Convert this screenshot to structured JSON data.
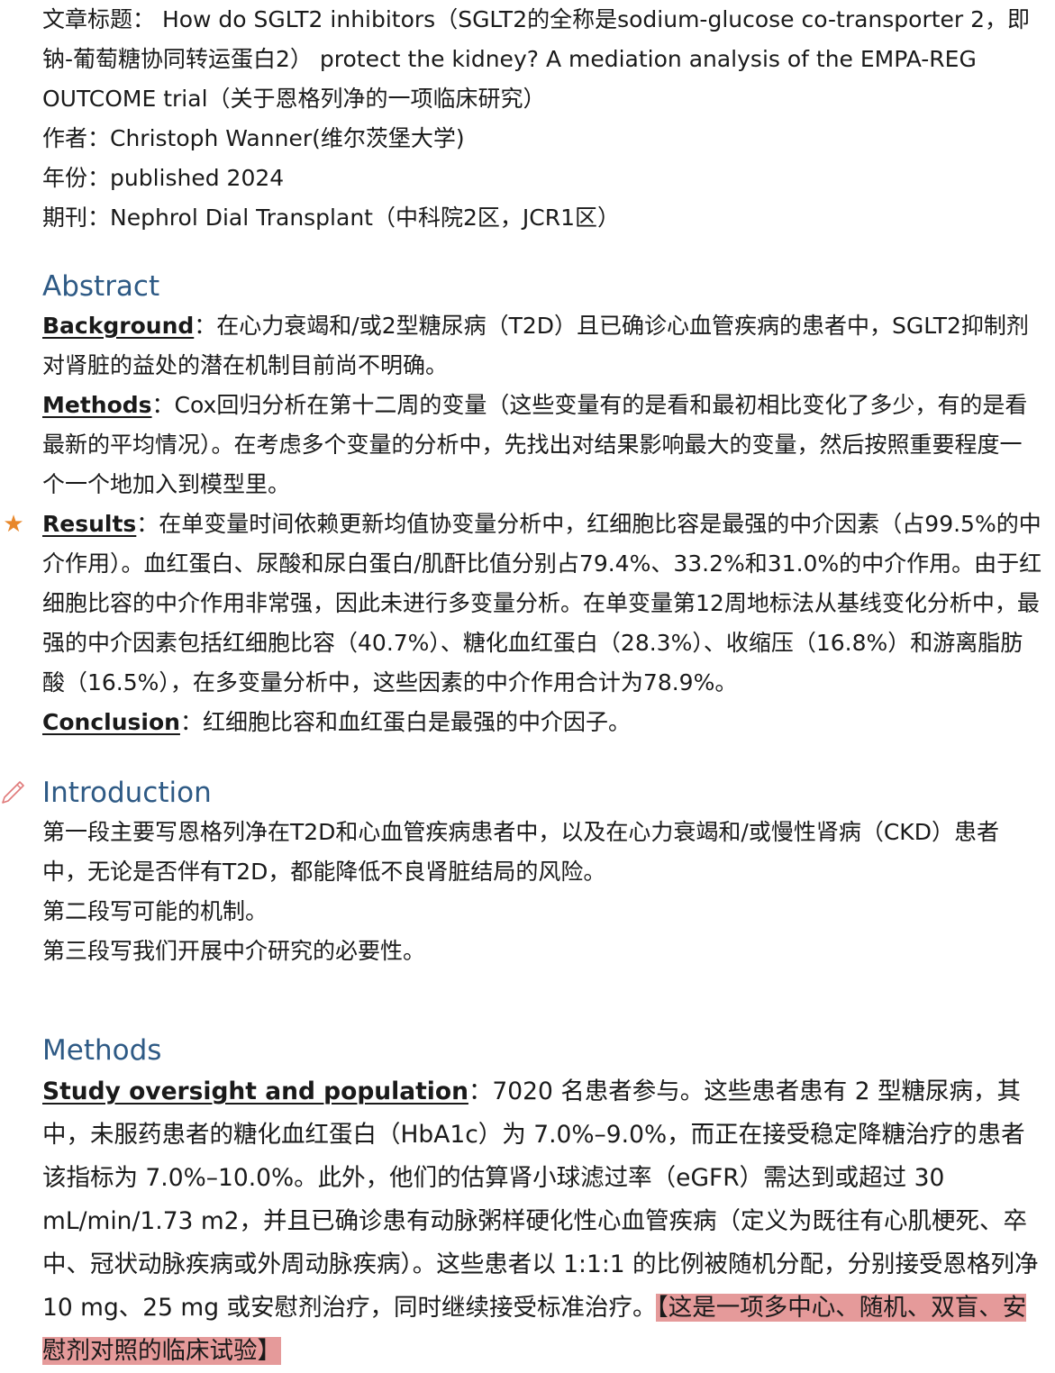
{
  "meta": {
    "title_line1": "文章标题： How do SGLT2 inhibitors（SGLT2的全称是sodium-glucose co-transporter 2，即",
    "title_line2": "钠-葡萄糖协同转运蛋白2） protect the kidney? A mediation analysis of the EMPA-REG",
    "title_line3": "OUTCOME trial（关于恩格列净的一项临床研究）",
    "author": "作者：Christoph Wanner(维尔茨堡大学)",
    "year": "年份：published 2024",
    "journal": "期刊：Nephrol Dial Transplant（中科院2区，JCR1区）"
  },
  "abstract": {
    "heading": "Abstract",
    "background_label": "Background",
    "background_text": "：在心力衰竭和/或2型糖尿病（T2D）且已确诊心血管疾病的患者中，SGLT2抑制剂对肾脏的益处的潜在机制目前尚不明确。",
    "methods_label": "Methods",
    "methods_text": "：Cox回归分析在第十二周的变量（这些变量有的是看和最初相比变化了多少，有的是看最新的平均情况）。在考虑多个变量的分析中，先找出对结果影响最大的变量，然后按照重要程度一个一个地加入到模型里。",
    "results_label": "Results",
    "results_text": "：在单变量时间依赖更新均值协变量分析中，红细胞比容是最强的中介因素（占99.5%的中介作用）。血红蛋白、尿酸和尿白蛋白/肌酐比值分别占79.4%、33.2%和31.0%的中介作用。由于红细胞比容的中介作用非常强，因此未进行多变量分析。在单变量第12周地标法从基线变化分析中，最强的中介因素包括红细胞比容（40.7%）、糖化血红蛋白（28.3%）、收缩压（16.8%）和游离脂肪酸（16.5%），在多变量分析中，这些因素的中介作用合计为78.9%。",
    "conclusion_label": "Conclusion",
    "conclusion_text": "：红细胞比容和血红蛋白是最强的中介因子。"
  },
  "introduction": {
    "heading": "Introduction",
    "para1": "第一段主要写恩格列净在T2D和心血管疾病患者中，以及在心力衰竭和/或慢性肾病（CKD）患者中，无论是否伴有T2D，都能降低不良肾脏结局的风险。",
    "para2": "第二段写可能的机制。",
    "para3": "第三段写我们开展中介研究的必要性。"
  },
  "methods": {
    "heading": "Methods",
    "study_label": "Study oversight and population",
    "study_text": "：7020 名患者参与。这些患者患有 2 型糖尿病，其中，未服药患者的糖化血红蛋白（HbA1c）为 7.0%–9.0%，而正在接受稳定降糖治疗的患者该指标为 7.0%–10.0%。此外，他们的估算肾小球滤过率（eGFR）需达到或超过 30 mL/min/1.73 m2，并且已确诊患有动脉粥样硬化性心血管疾病（定义为既往有心肌梗死、卒中、冠状动脉疾病或外周动脉疾病）。这些患者以 1:1:1 的比例被随机分配，分别接受恩格列净 10 mg、25 mg 或安慰剂治疗，同时继续接受标准治疗。",
    "study_highlight": "【这是一项多中心、随机、双盲、安慰剂对照的临床试验】"
  },
  "colors": {
    "heading": "#2e5a85",
    "highlight": "#e59a9a",
    "star": "#e8872a"
  },
  "icons": [
    "star-icon",
    "pencil-icon"
  ]
}
